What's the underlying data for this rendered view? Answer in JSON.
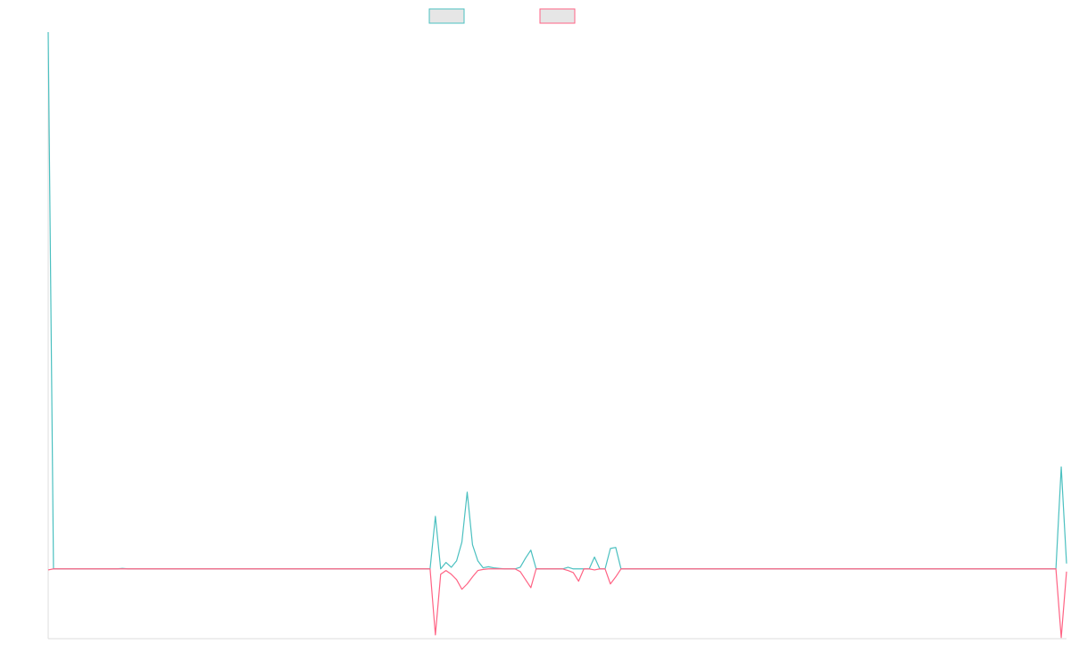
{
  "chart_data": {
    "type": "line",
    "ylim": [
      -13,
      100
    ],
    "series": [
      {
        "color": "#4bc0c0",
        "values": [
          100,
          0,
          0,
          0,
          0,
          0,
          0,
          0,
          0,
          0,
          0,
          0,
          0,
          0,
          0.1,
          0,
          0,
          0,
          0,
          0,
          0,
          0,
          0,
          0,
          0,
          0,
          0,
          0,
          0,
          0,
          0,
          0,
          0,
          0,
          0,
          0,
          0,
          0,
          0,
          0,
          0,
          0,
          0,
          0,
          0,
          0,
          0,
          0,
          0,
          0,
          0,
          0,
          0,
          0,
          0,
          0,
          0,
          0,
          0,
          0,
          0,
          0,
          0,
          0,
          0,
          0,
          0,
          0,
          0,
          0,
          0,
          0,
          0,
          9.8,
          0,
          1.2,
          0.3,
          1.5,
          5,
          14.3,
          4.5,
          1.5,
          0.2,
          0.4,
          0.2,
          0.1,
          0,
          0,
          0,
          0.3,
          2,
          3.5,
          0,
          0,
          0,
          0,
          0,
          0,
          0.3,
          0,
          0,
          0,
          0,
          2.2,
          0,
          0,
          3.8,
          4,
          0,
          0,
          0,
          0,
          0,
          0,
          0,
          0,
          0,
          0,
          0,
          0,
          0,
          0,
          0,
          0,
          0,
          0,
          0,
          0,
          0,
          0,
          0,
          0,
          0,
          0,
          0,
          0,
          0,
          0,
          0,
          0,
          0,
          0,
          0,
          0,
          0,
          0,
          0,
          0,
          0,
          0,
          0,
          0,
          0,
          0,
          0,
          0,
          0,
          0,
          0,
          0,
          0,
          0,
          0,
          0,
          0,
          0,
          0,
          0,
          0,
          0,
          0,
          0,
          0,
          0,
          0,
          0,
          0,
          0,
          0,
          0,
          0,
          0,
          0,
          0,
          0,
          0,
          0,
          0,
          0,
          0,
          0,
          19,
          1
        ]
      },
      {
        "color": "#ff6384",
        "values": [
          -0.2,
          0,
          0,
          0,
          0,
          0,
          0,
          0,
          0,
          0,
          0,
          0,
          0,
          0,
          0,
          0,
          0,
          0,
          0,
          0,
          0,
          0,
          0,
          0,
          0,
          0,
          0,
          0,
          0,
          0,
          0,
          0,
          0,
          0,
          0,
          0,
          0,
          0,
          0,
          0,
          0,
          0,
          0,
          0,
          0,
          0,
          0,
          0,
          0,
          0,
          0,
          0,
          0,
          0,
          0,
          0,
          0,
          0,
          0,
          0,
          0,
          0,
          0,
          0,
          0,
          0,
          0,
          0,
          0,
          0,
          0,
          0,
          0,
          -12.3,
          -1,
          -0.3,
          -1,
          -2,
          -3.8,
          -2.8,
          -1.5,
          -0.3,
          -0.1,
          0,
          0,
          0,
          0,
          0,
          0,
          -0.5,
          -2,
          -3.5,
          0,
          0,
          0,
          0,
          0,
          0,
          -0.3,
          -0.7,
          -2.3,
          0,
          0,
          -0.2,
          0,
          0,
          -2.8,
          -1.5,
          0,
          0,
          0,
          0,
          0,
          0,
          0,
          0,
          0,
          0,
          0,
          0,
          0,
          0,
          0,
          0,
          0,
          0,
          0,
          0,
          0,
          0,
          0,
          0,
          0,
          0,
          0,
          0,
          0,
          0,
          0,
          0,
          0,
          0,
          0,
          0,
          0,
          0,
          0,
          0,
          0,
          0,
          0,
          0,
          0,
          0,
          0,
          0,
          0,
          0,
          0,
          0,
          0,
          0,
          0,
          0,
          0,
          0,
          0,
          0,
          0,
          0,
          0,
          0,
          0,
          0,
          0,
          0,
          0,
          0,
          0,
          0,
          0,
          0,
          0,
          0,
          0,
          0,
          0,
          0,
          0,
          0,
          0,
          -12.8,
          -0.5
        ]
      }
    ]
  }
}
